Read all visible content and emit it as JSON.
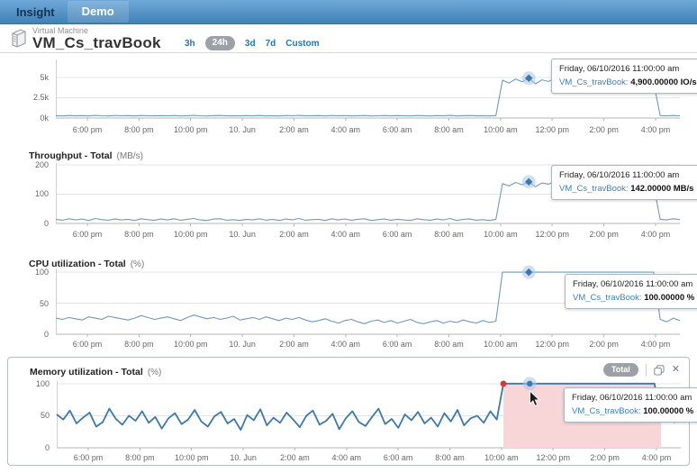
{
  "header": {
    "brand": "Insight",
    "menu": "Demo"
  },
  "entity": {
    "type_label": "Virtual Machine",
    "name": "VM_Cs_travBook"
  },
  "time_ranges": {
    "options": [
      "3h",
      "24h",
      "3d",
      "7d",
      "Custom"
    ],
    "selected": "24h"
  },
  "colors": {
    "accent_blue": "#2377b4",
    "line_light": "#7199bf",
    "line_dark": "#3b78ad",
    "highlight_pink": "#f8d5d7",
    "marker_red": "#d8382e",
    "badge_gray": "#9ba1a6"
  },
  "memory_panel": {
    "badge": "Total",
    "icons": [
      "copy-icon",
      "close-icon"
    ]
  },
  "x_axis_labels": [
    "6:00 pm",
    "8:00 pm",
    "10:00 pm",
    "10. Jun",
    "2:00 am",
    "4:00 am",
    "6:00 am",
    "8:00 am",
    "10:00 am",
    "12:00 pm",
    "2:00 pm",
    "4:00 pm"
  ],
  "chart_data": [
    {
      "type": "line",
      "title": "",
      "unit": "",
      "ylim": [
        0,
        7200
      ],
      "y_ticks": [
        {
          "label": "0k",
          "value": 0
        },
        {
          "label": "2.5k",
          "value": 2500
        },
        {
          "label": "5k",
          "value": 5000
        }
      ],
      "line_color": "#7199bf",
      "line_width": 1.1,
      "marker": {
        "index": 72,
        "shape": "diamond"
      },
      "tooltip": {
        "date": "Friday, 06/10/2016 11:00:00 am",
        "series_label": "VM_Cs_travBook:",
        "value": "4,900.00000 IO/s"
      },
      "values": [
        290,
        260,
        310,
        270,
        300,
        250,
        320,
        280,
        260,
        305,
        275,
        295,
        255,
        315,
        285,
        265,
        300,
        270,
        310,
        260,
        290,
        320,
        275,
        255,
        295,
        305,
        265,
        285,
        250,
        300,
        270,
        315,
        260,
        290,
        255,
        305,
        275,
        320,
        265,
        285,
        295,
        250,
        310,
        270,
        300,
        260,
        290,
        315,
        255,
        280,
        305,
        265,
        295,
        275,
        250,
        310,
        285,
        260,
        300,
        270,
        320,
        255,
        290,
        305,
        265,
        280,
        250,
        295,
        4650,
        4300,
        4800,
        4450,
        4900,
        4200,
        4700,
        4500,
        4850,
        4350,
        4600,
        4750,
        4250,
        4550,
        4800,
        4400,
        4650,
        4300,
        4750,
        4500,
        4850,
        4250,
        4600,
        4400,
        300,
        270,
        310,
        280
      ]
    },
    {
      "type": "line",
      "title": "Throughput - Total",
      "unit": "(MB/s)",
      "ylim": [
        0,
        206
      ],
      "y_ticks": [
        {
          "label": "0",
          "value": 0
        },
        {
          "label": "100",
          "value": 100
        },
        {
          "label": "200",
          "value": 200
        }
      ],
      "line_color": "#7199bf",
      "line_width": 1.1,
      "marker": {
        "index": 72,
        "shape": "diamond"
      },
      "tooltip": {
        "date": "Friday, 06/10/2016 11:00:00 am",
        "series_label": "VM_Cs_travBook:",
        "value": "142.00000 MB/s"
      },
      "values": [
        14,
        11,
        16,
        12,
        15,
        10,
        17,
        13,
        11,
        15,
        12,
        14,
        10,
        16,
        13,
        11,
        15,
        12,
        16,
        11,
        14,
        17,
        12,
        10,
        15,
        16,
        11,
        13,
        10,
        14,
        12,
        16,
        11,
        14,
        10,
        15,
        12,
        17,
        11,
        13,
        14,
        10,
        16,
        12,
        15,
        11,
        14,
        16,
        10,
        13,
        15,
        11,
        14,
        12,
        10,
        16,
        13,
        11,
        15,
        12,
        17,
        10,
        14,
        15,
        11,
        13,
        10,
        14,
        136,
        128,
        140,
        132,
        142,
        125,
        138,
        134,
        143,
        129,
        137,
        140,
        126,
        133,
        144,
        131,
        138,
        127,
        141,
        135,
        143,
        126,
        137,
        131,
        14,
        12,
        16,
        13
      ]
    },
    {
      "type": "line",
      "title": "CPU utilization - Total",
      "unit": "(%)",
      "ylim": [
        0,
        106
      ],
      "y_ticks": [
        {
          "label": "0",
          "value": 0
        },
        {
          "label": "50",
          "value": 50
        },
        {
          "label": "100",
          "value": 100
        }
      ],
      "line_color": "#7199bf",
      "line_width": 1.1,
      "marker": {
        "index": 72,
        "shape": "diamond"
      },
      "tooltip": {
        "date": "Friday, 06/10/2016 11:00:00 am",
        "series_label": "VM_Cs_travBook:",
        "value": "100.00000 %"
      },
      "values": [
        26,
        24,
        27,
        25,
        23,
        28,
        26,
        24,
        29,
        27,
        25,
        23,
        26,
        30,
        27,
        24,
        26,
        28,
        25,
        22,
        27,
        31,
        28,
        25,
        27,
        24,
        26,
        29,
        23,
        25,
        27,
        24,
        28,
        25,
        22,
        26,
        24,
        27,
        23,
        20,
        22,
        25,
        21,
        18,
        22,
        24,
        20,
        17,
        21,
        23,
        19,
        22,
        18,
        21,
        24,
        19,
        17,
        20,
        22,
        18,
        21,
        19,
        23,
        20,
        18,
        22,
        19,
        21,
        100,
        100,
        100,
        100,
        100,
        100,
        100,
        100,
        100,
        100,
        100,
        100,
        100,
        100,
        100,
        100,
        100,
        100,
        100,
        100,
        100,
        100,
        100,
        100,
        24,
        20,
        26,
        22
      ]
    },
    {
      "type": "line",
      "title": "Memory utilization - Total",
      "unit": "(%)",
      "ylim": [
        0,
        104
      ],
      "y_ticks": [
        {
          "label": "0",
          "value": 0
        },
        {
          "label": "50",
          "value": 50
        },
        {
          "label": "100",
          "value": 100
        }
      ],
      "line_color": "#3b78ad",
      "line_width": 1.8,
      "marker": {
        "index": 72,
        "shape": "circle"
      },
      "red_dot_index": 68,
      "highlight": {
        "start_index": 68,
        "end_index": 92,
        "color": "#f8d5d7"
      },
      "badge": "Total",
      "tooltip": {
        "date": "Friday, 06/10/2016 11:00:00 am",
        "series_label": "VM_Cs_travBook:",
        "value": "100.00000 %"
      },
      "values": [
        52,
        44,
        58,
        38,
        47,
        55,
        33,
        40,
        61,
        45,
        36,
        50,
        42,
        57,
        39,
        48,
        30,
        46,
        54,
        37,
        44,
        59,
        41,
        33,
        49,
        56,
        38,
        45,
        28,
        51,
        43,
        60,
        35,
        47,
        39,
        55,
        44,
        32,
        50,
        58,
        36,
        42,
        53,
        29,
        46,
        57,
        40,
        34,
        48,
        61,
        37,
        45,
        31,
        52,
        43,
        56,
        38,
        47,
        33,
        54,
        41,
        59,
        35,
        46,
        50,
        39,
        57,
        44,
        100,
        100,
        100,
        100,
        100,
        100,
        100,
        100,
        100,
        100,
        100,
        100,
        100,
        100,
        100,
        100,
        100,
        100,
        100,
        100,
        100,
        100,
        100,
        100,
        45,
        58,
        40,
        50
      ]
    }
  ]
}
